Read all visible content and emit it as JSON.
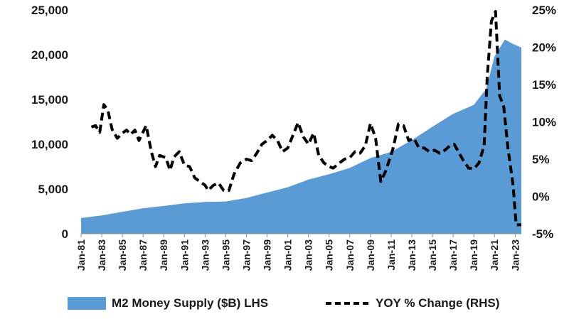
{
  "chart_data": {
    "type": "area",
    "title": "",
    "xlabel": "",
    "ylabel": "",
    "x_start_year": 1981,
    "x_end_year": 2023.6,
    "x_tick_labels": [
      "Jan-81",
      "Jan-83",
      "Jan-85",
      "Jan-87",
      "Jan-89",
      "Jan-91",
      "Jan-93",
      "Jan-95",
      "Jan-97",
      "Jan-99",
      "Jan-01",
      "Jan-03",
      "Jan-05",
      "Jan-07",
      "Jan-09",
      "Jan-11",
      "Jan-13",
      "Jan-15",
      "Jan-17",
      "Jan-19",
      "Jan-21",
      "Jan-23"
    ],
    "left_axis": {
      "ylim": [
        0,
        25000
      ],
      "ticks": [
        0,
        5000,
        10000,
        15000,
        20000,
        25000
      ],
      "tick_labels": [
        "0",
        "5,000",
        "10,000",
        "15,000",
        "20,000",
        "25,000"
      ]
    },
    "right_axis": {
      "ylim": [
        -5,
        25
      ],
      "ticks": [
        -5,
        0,
        5,
        10,
        15,
        20,
        25
      ],
      "tick_labels": [
        "-5%",
        "0%",
        "5%",
        "10%",
        "15%",
        "20%",
        "25%"
      ]
    },
    "series": [
      {
        "name": "M2 Money Supply ($B) LHS",
        "axis": "left",
        "style": "area",
        "color": "#5b9bd5",
        "points": [
          [
            1981,
            1750
          ],
          [
            1983,
            2050
          ],
          [
            1985,
            2450
          ],
          [
            1987,
            2850
          ],
          [
            1989,
            3100
          ],
          [
            1991,
            3400
          ],
          [
            1993,
            3550
          ],
          [
            1995,
            3600
          ],
          [
            1997,
            4000
          ],
          [
            1999,
            4600
          ],
          [
            2001,
            5200
          ],
          [
            2003,
            6050
          ],
          [
            2005,
            6650
          ],
          [
            2007,
            7350
          ],
          [
            2009,
            8450
          ],
          [
            2011,
            9150
          ],
          [
            2013,
            10450
          ],
          [
            2015,
            11950
          ],
          [
            2017,
            13400
          ],
          [
            2019,
            14400
          ],
          [
            2020.2,
            16200
          ],
          [
            2021,
            19800
          ],
          [
            2022,
            21700
          ],
          [
            2022.8,
            21200
          ],
          [
            2023.6,
            20800
          ]
        ]
      },
      {
        "name": "YOY % Change (RHS)",
        "axis": "right",
        "style": "dashed-line",
        "color": "#000000",
        "points": [
          [
            1982,
            9.3
          ],
          [
            1982.4,
            9.5
          ],
          [
            1982.8,
            8.6
          ],
          [
            1983.2,
            12.3
          ],
          [
            1983.6,
            11.5
          ],
          [
            1984,
            9.0
          ],
          [
            1984.5,
            7.8
          ],
          [
            1985,
            8.5
          ],
          [
            1985.4,
            8.9
          ],
          [
            1985.8,
            8.3
          ],
          [
            1986.2,
            8.9
          ],
          [
            1986.6,
            7.5
          ],
          [
            1987.3,
            9.5
          ],
          [
            1987.8,
            6.0
          ],
          [
            1988.2,
            4.0
          ],
          [
            1988.6,
            5.5
          ],
          [
            1989.2,
            5.2
          ],
          [
            1989.6,
            3.5
          ],
          [
            1990,
            5.3
          ],
          [
            1990.5,
            6.0
          ],
          [
            1991,
            4.2
          ],
          [
            1991.5,
            4.0
          ],
          [
            1992,
            2.5
          ],
          [
            1992.5,
            2.0
          ],
          [
            1993,
            1.5
          ],
          [
            1993.3,
            0.8
          ],
          [
            1993.8,
            1.5
          ],
          [
            1994.3,
            1.8
          ],
          [
            1994.8,
            0.8
          ],
          [
            1995.3,
            0.8
          ],
          [
            1995.8,
            3.0
          ],
          [
            1996.4,
            4.5
          ],
          [
            1997,
            5.0
          ],
          [
            1997.5,
            4.8
          ],
          [
            1998,
            5.8
          ],
          [
            1998.5,
            7.0
          ],
          [
            1999,
            7.5
          ],
          [
            1999.5,
            8.2
          ],
          [
            2000,
            7.5
          ],
          [
            2000.5,
            6.0
          ],
          [
            2001,
            6.5
          ],
          [
            2001.5,
            8.2
          ],
          [
            2002,
            9.9
          ],
          [
            2002.5,
            8.0
          ],
          [
            2003,
            7.0
          ],
          [
            2003.5,
            8.5
          ],
          [
            2004,
            5.5
          ],
          [
            2004.5,
            4.5
          ],
          [
            2005,
            4.0
          ],
          [
            2005.4,
            3.8
          ],
          [
            2006,
            4.5
          ],
          [
            2006.5,
            5.0
          ],
          [
            2007,
            5.2
          ],
          [
            2007.5,
            6.0
          ],
          [
            2008,
            5.8
          ],
          [
            2008.5,
            6.8
          ],
          [
            2009,
            9.8
          ],
          [
            2009.5,
            7.8
          ],
          [
            2010,
            2.0
          ],
          [
            2010.5,
            3.5
          ],
          [
            2011.2,
            6.5
          ],
          [
            2011.7,
            9.7
          ],
          [
            2012.2,
            9.5
          ],
          [
            2012.7,
            7.5
          ],
          [
            2013.2,
            7.8
          ],
          [
            2013.7,
            6.5
          ],
          [
            2014.2,
            6.5
          ],
          [
            2014.7,
            6.0
          ],
          [
            2015.2,
            6.2
          ],
          [
            2015.7,
            5.8
          ],
          [
            2016.2,
            6.2
          ],
          [
            2016.7,
            6.8
          ],
          [
            2017.1,
            7.0
          ],
          [
            2017.5,
            6.0
          ],
          [
            2018,
            4.8
          ],
          [
            2018.5,
            3.8
          ],
          [
            2019,
            3.7
          ],
          [
            2019.5,
            4.5
          ],
          [
            2020,
            6.8
          ],
          [
            2020.3,
            16.0
          ],
          [
            2020.7,
            23.5
          ],
          [
            2021.1,
            24.8
          ],
          [
            2021.5,
            13.5
          ],
          [
            2021.9,
            12.0
          ],
          [
            2022.3,
            6.5
          ],
          [
            2022.8,
            1.5
          ],
          [
            2023.1,
            -3.8
          ],
          [
            2023.6,
            -3.8
          ]
        ]
      }
    ],
    "legend": {
      "placement": "bottom"
    }
  }
}
